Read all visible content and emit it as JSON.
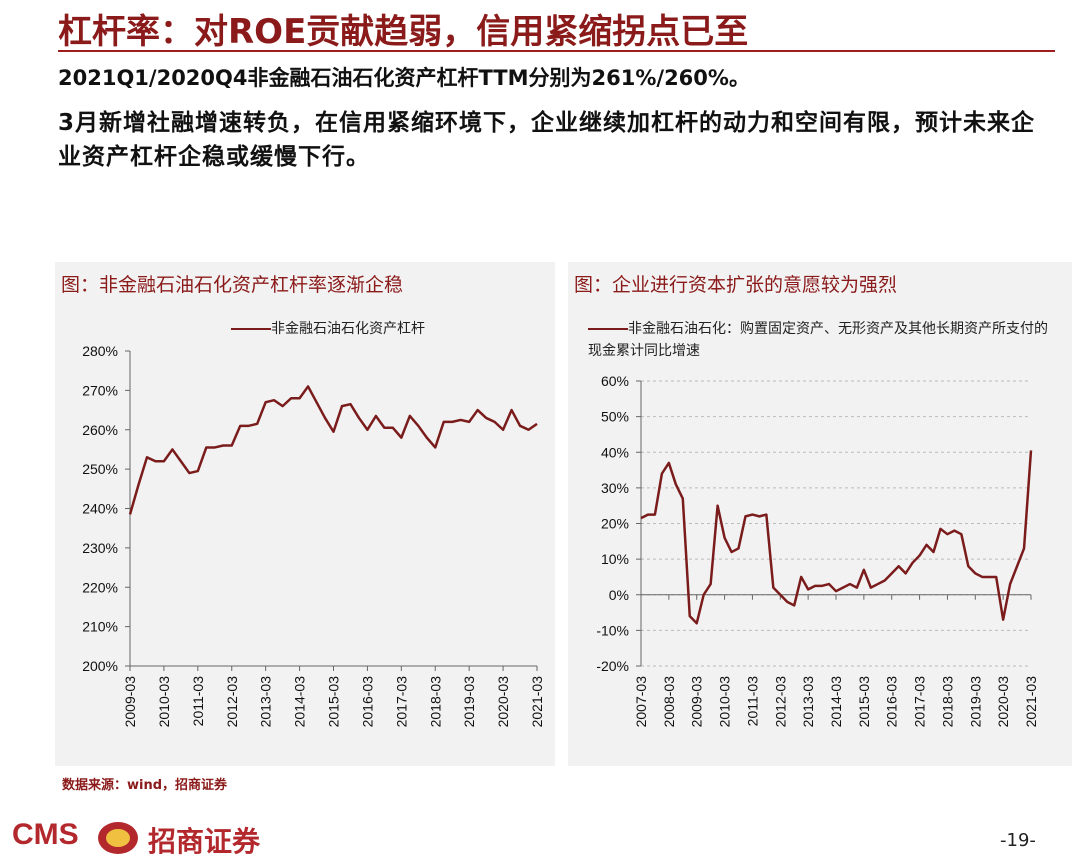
{
  "page": {
    "title": "杠杆率：对ROE贡献趋弱，信用紧缩拐点已至",
    "subtitle": "2021Q1/2020Q4非金融石油石化资产杠杆TTM分别为261%/260%。",
    "body": "3月新增社融增速转负，在信用紧缩环境下，企业继续加杠杆的动力和空间有限，预计未来企业资产杠杆企稳或缓慢下行。",
    "source": "数据来源：wind，招商证券",
    "logo": "CMS",
    "logo_name": "招商证券",
    "page_number": "-19-"
  },
  "chart_data": [
    {
      "type": "line",
      "title": "图：非金融石油石化资产杠杆率逐渐企稳",
      "categories": [
        "2009-03",
        null,
        null,
        null,
        "2010-03",
        null,
        null,
        null,
        "2011-03",
        null,
        null,
        null,
        "2012-03",
        null,
        null,
        null,
        "2013-03",
        null,
        null,
        null,
        "2014-03",
        null,
        null,
        null,
        "2015-03",
        null,
        null,
        null,
        "2016-03",
        null,
        null,
        null,
        "2017-03",
        null,
        null,
        null,
        "2018-03",
        null,
        null,
        null,
        "2019-03",
        null,
        null,
        null,
        "2020-03",
        null,
        null,
        null,
        "2021-03"
      ],
      "series": [
        {
          "name": "非金融石油石化资产杠杆",
          "color": "#7b1c1c",
          "values": [
            238.5,
            246,
            253,
            252,
            252,
            255,
            252,
            249,
            249.5,
            255.5,
            255.5,
            256,
            256,
            261,
            261,
            261.5,
            267,
            267.5,
            266,
            268,
            268,
            271,
            267,
            263,
            259.5,
            266,
            266.5,
            263,
            260,
            263.5,
            260.5,
            260.5,
            258,
            263.5,
            261,
            258,
            255.5,
            262,
            262,
            262.5,
            262,
            265,
            263,
            262,
            260,
            265,
            261,
            260,
            261.5
          ]
        }
      ],
      "ylim": [
        200,
        280
      ],
      "yticks": [
        {
          "value": 200,
          "label": "200%"
        },
        {
          "value": 210,
          "label": "210%"
        },
        {
          "value": 220,
          "label": "220%"
        },
        {
          "value": 230,
          "label": "230%"
        },
        {
          "value": 240,
          "label": "240%"
        },
        {
          "value": 250,
          "label": "250%"
        },
        {
          "value": 260,
          "label": "260%"
        },
        {
          "value": 270,
          "label": "270%"
        },
        {
          "value": 280,
          "label": "280%"
        }
      ],
      "grid": false
    },
    {
      "type": "line",
      "title": "图：企业进行资本扩张的意愿较为强烈",
      "categories": [
        "2007-03",
        null,
        null,
        null,
        "2008-03",
        null,
        null,
        null,
        "2009-03",
        null,
        null,
        null,
        "2010-03",
        null,
        null,
        null,
        "2011-03",
        null,
        null,
        null,
        "2012-03",
        null,
        null,
        null,
        "2013-03",
        null,
        null,
        null,
        "2014-03",
        null,
        null,
        null,
        "2015-03",
        null,
        null,
        null,
        "2016-03",
        null,
        null,
        null,
        "2017-03",
        null,
        null,
        null,
        "2018-03",
        null,
        null,
        null,
        "2019-03",
        null,
        null,
        null,
        "2020-03",
        null,
        null,
        null,
        "2021-03"
      ],
      "series": [
        {
          "name": "非金融石油石化：购置固定资产、无形资产及其他长期资产所支付的现金累计同比增速",
          "color": "#7b1c1c",
          "values": [
            21.5,
            22.5,
            22.5,
            34,
            37,
            31,
            27,
            -6,
            -8,
            0,
            3,
            25,
            16,
            12,
            13,
            22,
            22.5,
            22,
            22.5,
            2,
            0,
            -2,
            -3,
            5,
            1.5,
            2.5,
            2.5,
            3,
            1,
            2,
            3,
            2,
            7,
            2,
            3,
            4,
            6,
            8,
            6,
            9,
            11,
            14,
            12,
            18.5,
            17,
            18,
            17,
            8,
            6,
            5,
            5,
            5,
            -7,
            3,
            8,
            13,
            40.5
          ]
        }
      ],
      "ylim": [
        -20,
        60
      ],
      "yticks": [
        {
          "value": -20,
          "label": "-20%"
        },
        {
          "value": -10,
          "label": "-10%"
        },
        {
          "value": 0,
          "label": "0%"
        },
        {
          "value": 10,
          "label": "10%"
        },
        {
          "value": 20,
          "label": "20%"
        },
        {
          "value": 30,
          "label": "30%"
        },
        {
          "value": 40,
          "label": "40%"
        },
        {
          "value": 50,
          "label": "50%"
        },
        {
          "value": 60,
          "label": "60%"
        }
      ],
      "grid": true
    }
  ]
}
